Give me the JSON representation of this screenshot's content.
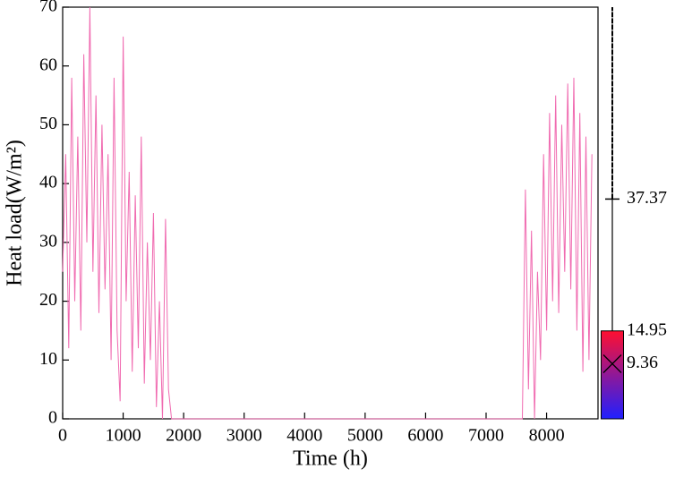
{
  "chart_data": {
    "type": "line",
    "x_label": "Time (h)",
    "y_label": "Heat load(W/m²)",
    "x": [
      0,
      50,
      100,
      150,
      200,
      250,
      300,
      350,
      400,
      450,
      500,
      550,
      600,
      650,
      700,
      750,
      800,
      850,
      900,
      950,
      1000,
      1050,
      1100,
      1150,
      1200,
      1250,
      1300,
      1350,
      1400,
      1450,
      1500,
      1550,
      1600,
      1650,
      1700,
      1750,
      1800,
      1850,
      1900,
      1950,
      2000,
      2050,
      2100,
      2150,
      2200,
      2250,
      2300,
      2350,
      2400,
      2450,
      2500,
      2550,
      2600,
      2650,
      2700,
      2750,
      2800,
      2850,
      2900,
      2950,
      3000,
      3050,
      3100,
      3150,
      3200,
      3250,
      3300,
      3350,
      3400,
      3450,
      3500,
      3550,
      3600,
      3650,
      3700,
      3750,
      3800,
      3850,
      3900,
      3950,
      4000,
      4050,
      4100,
      4150,
      4200,
      4250,
      4300,
      4350,
      4400,
      4450,
      4500,
      4550,
      4600,
      4650,
      4700,
      4750,
      4800,
      4850,
      4900,
      4950,
      5000,
      5050,
      5100,
      5150,
      5200,
      5250,
      5300,
      5350,
      5400,
      5450,
      5500,
      5550,
      5600,
      5650,
      5700,
      5750,
      5800,
      5850,
      5900,
      5950,
      6000,
      6050,
      6100,
      6150,
      6200,
      6250,
      6300,
      6350,
      6400,
      6450,
      6500,
      6550,
      6600,
      6650,
      6700,
      6750,
      6800,
      6850,
      6900,
      6950,
      7000,
      7050,
      7100,
      7150,
      7200,
      7250,
      7300,
      7350,
      7400,
      7450,
      7500,
      7550,
      7600,
      7650,
      7700,
      7750,
      7800,
      7850,
      7900,
      7950,
      8000,
      8050,
      8100,
      8150,
      8200,
      8250,
      8300,
      8350,
      8400,
      8450,
      8500,
      8550,
      8600,
      8650,
      8700,
      8750
    ],
    "values": [
      25,
      45,
      12,
      58,
      20,
      48,
      15,
      62,
      30,
      70,
      25,
      55,
      18,
      50,
      22,
      45,
      10,
      58,
      15,
      3,
      65,
      20,
      42,
      8,
      38,
      12,
      48,
      6,
      30,
      10,
      35,
      2,
      20,
      0,
      34,
      5,
      0,
      0,
      0,
      0,
      0,
      0,
      0,
      0,
      0,
      0,
      0,
      0,
      0,
      0,
      0,
      0,
      0,
      0,
      0,
      0,
      0,
      0,
      0,
      0,
      0,
      0,
      0,
      0,
      0,
      0,
      0,
      0,
      0,
      0,
      0,
      0,
      0,
      0,
      0,
      0,
      0,
      0,
      0,
      0,
      0,
      0,
      0,
      0,
      0,
      0,
      0,
      0,
      0,
      0,
      0,
      0,
      0,
      0,
      0,
      0,
      0,
      0,
      0,
      0,
      0,
      0,
      0,
      0,
      0,
      0,
      0,
      0,
      0,
      0,
      0,
      0,
      0,
      0,
      0,
      0,
      0,
      0,
      0,
      0,
      0,
      0,
      0,
      0,
      0,
      0,
      0,
      0,
      0,
      0,
      0,
      0,
      0,
      0,
      0,
      0,
      0,
      0,
      0,
      0,
      0,
      0,
      0,
      0,
      0,
      0,
      0,
      0,
      0,
      0,
      0,
      0,
      0,
      39,
      5,
      32,
      0,
      25,
      10,
      45,
      15,
      52,
      20,
      55,
      18,
      50,
      25,
      57,
      22,
      58,
      15,
      52,
      8,
      48,
      10,
      45
    ],
    "color": "#f06ab0",
    "xlim": [
      0,
      8850
    ],
    "ylim": [
      0,
      70
    ],
    "xticks": [
      0,
      1000,
      2000,
      3000,
      4000,
      5000,
      6000,
      7000,
      8000
    ],
    "yticks": [
      0,
      10,
      20,
      30,
      40,
      50,
      60,
      70
    ],
    "box": {
      "q1": 0,
      "q3": 14.95,
      "mean": 9.36,
      "whisker_high": 37.37,
      "max": 70,
      "colors": [
        "#2020ff",
        "#ff1030"
      ]
    }
  }
}
